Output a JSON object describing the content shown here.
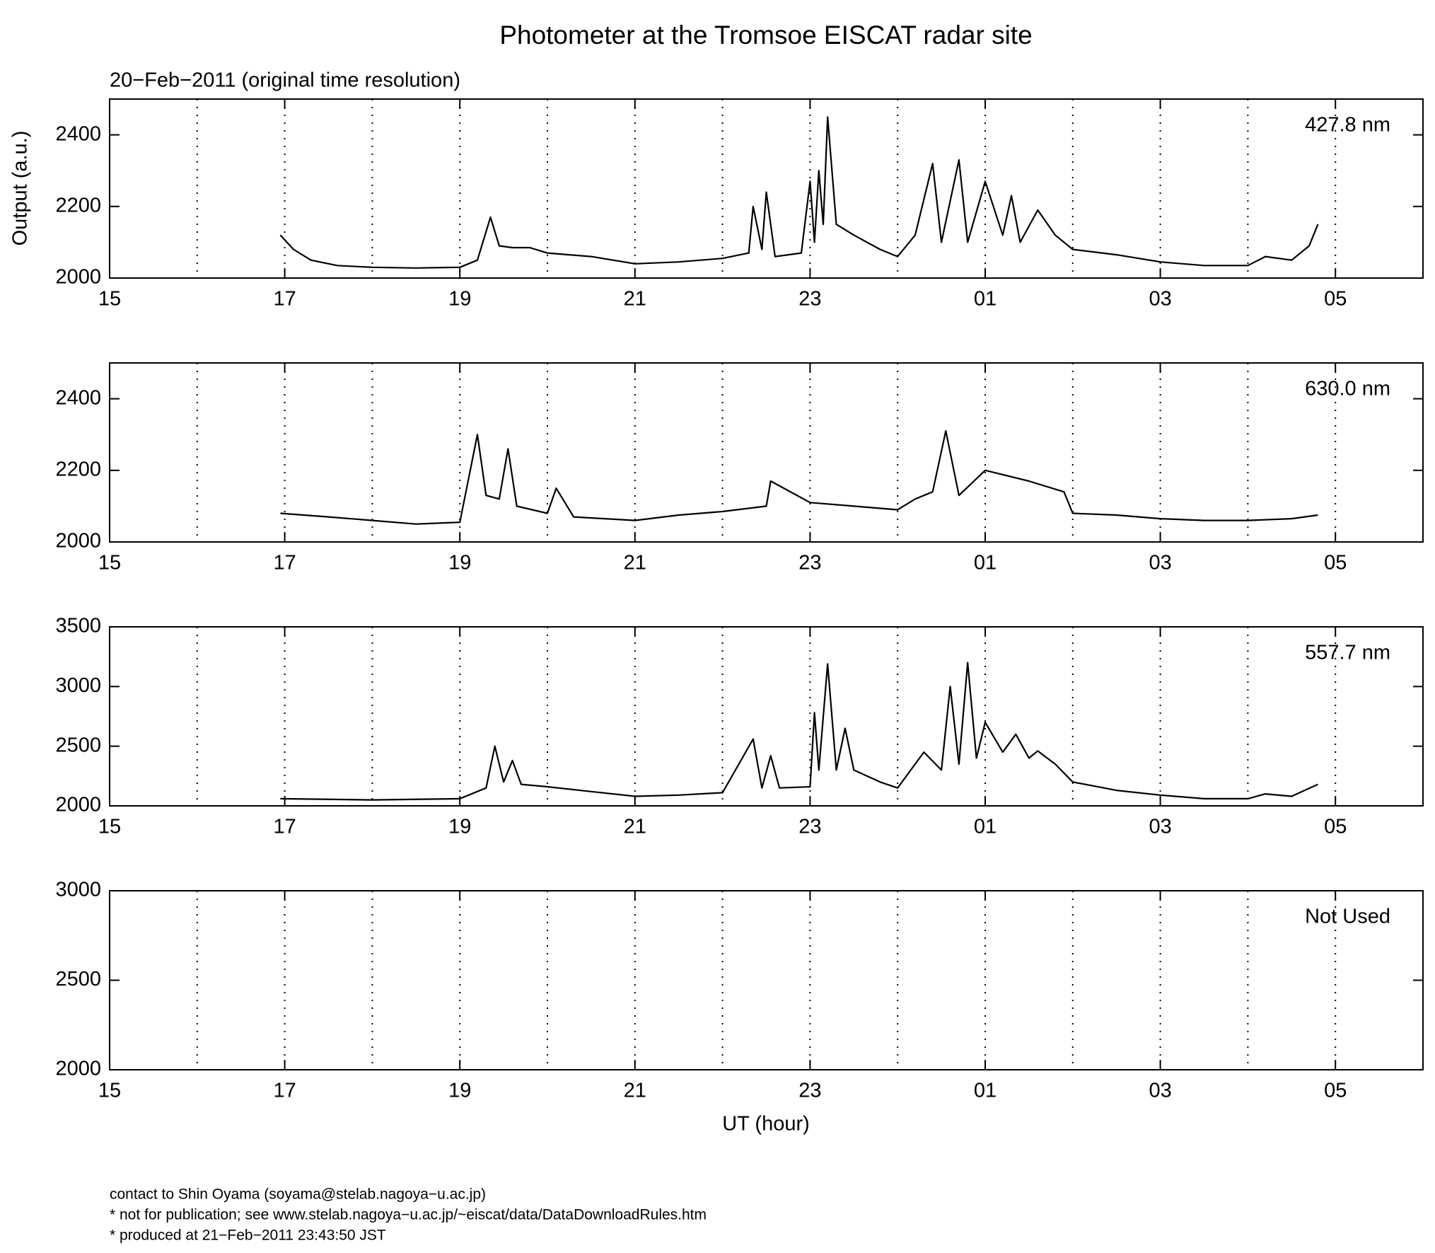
{
  "title": "Photometer at the Tromsoe EISCAT radar site",
  "subtitle": "20−Feb−2011 (original time resolution)",
  "y_label": "Output (a.u.)",
  "x_label": "UT (hour)",
  "footer": [
    "contact to Shin Oyama (soyama@stelab.nagoya−u.ac.jp)",
    "* not for publication; see www.stelab.nagoya−u.ac.jp/~eiscat/data/DataDownloadRules.htm",
    "* produced at 21−Feb−2011 23:43:50 JST"
  ],
  "chart_data": [
    {
      "type": "line",
      "label": "427.8 nm",
      "color": "#000000",
      "x": [
        16.95,
        17.1,
        17.3,
        17.6,
        18,
        18.5,
        19,
        19.2,
        19.35,
        19.45,
        19.6,
        19.8,
        20,
        20.5,
        21,
        21.5,
        22,
        22.3,
        22.35,
        22.45,
        22.5,
        22.6,
        22.9,
        23.0,
        23.05,
        23.1,
        23.15,
        23.2,
        23.3,
        23.5,
        23.8,
        24.0,
        24.2,
        24.4,
        24.5,
        24.7,
        24.8,
        25.0,
        25.2,
        25.3,
        25.4,
        25.6,
        25.8,
        26,
        26.5,
        27,
        27.5,
        28,
        28.2,
        28.5,
        28.7,
        28.8
      ],
      "values": [
        2120,
        2080,
        2050,
        2035,
        2030,
        2028,
        2030,
        2050,
        2170,
        2090,
        2085,
        2085,
        2070,
        2060,
        2040,
        2045,
        2055,
        2070,
        2200,
        2080,
        2240,
        2060,
        2070,
        2270,
        2100,
        2300,
        2150,
        2450,
        2150,
        2120,
        2080,
        2060,
        2120,
        2320,
        2100,
        2330,
        2100,
        2270,
        2120,
        2230,
        2100,
        2190,
        2120,
        2080,
        2065,
        2045,
        2035,
        2035,
        2060,
        2050,
        2090,
        2150
      ],
      "xlim": [
        15,
        30
      ],
      "ylim": [
        2000,
        2500
      ],
      "yticks": [
        2000,
        2200,
        2400
      ],
      "xticks": [
        15,
        17,
        19,
        21,
        {
          "value": 23,
          "label": "23"
        },
        {
          "value": 25,
          "label": "01"
        },
        {
          "value": 27,
          "label": "03"
        },
        {
          "value": 29,
          "label": "05"
        }
      ],
      "xgrid": [
        16,
        17,
        18,
        19,
        20,
        21,
        22,
        23,
        24,
        25,
        26,
        27,
        28,
        29
      ]
    },
    {
      "type": "line",
      "label": "630.0 nm",
      "color": "#000000",
      "x": [
        16.95,
        17.5,
        18,
        18.5,
        19,
        19.2,
        19.3,
        19.45,
        19.55,
        19.65,
        20,
        20.1,
        20.3,
        21,
        21.5,
        22,
        22.5,
        22.55,
        23,
        23.5,
        24,
        24.2,
        24.4,
        24.55,
        24.7,
        25,
        25.5,
        25.9,
        26,
        26.5,
        27,
        27.5,
        28,
        28.5,
        28.8
      ],
      "values": [
        2080,
        2070,
        2060,
        2050,
        2055,
        2300,
        2130,
        2120,
        2260,
        2100,
        2080,
        2150,
        2070,
        2060,
        2075,
        2085,
        2100,
        2170,
        2110,
        2100,
        2090,
        2120,
        2140,
        2310,
        2130,
        2200,
        2170,
        2140,
        2080,
        2075,
        2065,
        2060,
        2060,
        2065,
        2075
      ],
      "xlim": [
        15,
        30
      ],
      "ylim": [
        2000,
        2500
      ],
      "yticks": [
        2000,
        2200,
        2400
      ],
      "xticks": [
        15,
        17,
        19,
        21,
        {
          "value": 23,
          "label": "23"
        },
        {
          "value": 25,
          "label": "01"
        },
        {
          "value": 27,
          "label": "03"
        },
        {
          "value": 29,
          "label": "05"
        }
      ],
      "xgrid": [
        16,
        17,
        18,
        19,
        20,
        21,
        22,
        23,
        24,
        25,
        26,
        27,
        28,
        29
      ]
    },
    {
      "type": "line",
      "label": "557.7 nm",
      "color": "#000000",
      "x": [
        16.95,
        18,
        19,
        19.3,
        19.4,
        19.5,
        19.6,
        19.7,
        20,
        20.5,
        21,
        21.5,
        22,
        22.35,
        22.45,
        22.55,
        22.65,
        23,
        23.05,
        23.1,
        23.2,
        23.3,
        23.4,
        23.5,
        23.8,
        24,
        24.3,
        24.5,
        24.6,
        24.7,
        24.8,
        24.9,
        25,
        25.2,
        25.35,
        25.5,
        25.6,
        25.8,
        26,
        26.5,
        27,
        27.5,
        28,
        28.2,
        28.5,
        28.8
      ],
      "values": [
        2060,
        2050,
        2060,
        2150,
        2500,
        2200,
        2380,
        2180,
        2160,
        2120,
        2080,
        2090,
        2110,
        2560,
        2150,
        2420,
        2150,
        2160,
        2780,
        2300,
        3190,
        2300,
        2650,
        2300,
        2200,
        2150,
        2450,
        2300,
        3000,
        2350,
        3200,
        2400,
        2700,
        2450,
        2600,
        2400,
        2460,
        2350,
        2200,
        2130,
        2090,
        2060,
        2060,
        2100,
        2080,
        2180
      ],
      "xlim": [
        15,
        30
      ],
      "ylim": [
        2000,
        3500
      ],
      "yticks": [
        2000,
        2500,
        3000,
        3500
      ],
      "xticks": [
        15,
        17,
        19,
        21,
        {
          "value": 23,
          "label": "23"
        },
        {
          "value": 25,
          "label": "01"
        },
        {
          "value": 27,
          "label": "03"
        },
        {
          "value": 29,
          "label": "05"
        }
      ],
      "xgrid": [
        16,
        17,
        18,
        19,
        20,
        21,
        22,
        23,
        24,
        25,
        26,
        27,
        28,
        29
      ]
    },
    {
      "type": "line",
      "label": "Not Used",
      "color": "#000000",
      "x": [],
      "values": [],
      "xlim": [
        15,
        30
      ],
      "ylim": [
        2000,
        3000
      ],
      "yticks": [
        2000,
        2500,
        3000
      ],
      "xticks": [
        15,
        17,
        19,
        21,
        {
          "value": 23,
          "label": "23"
        },
        {
          "value": 25,
          "label": "01"
        },
        {
          "value": 27,
          "label": "03"
        },
        {
          "value": 29,
          "label": "05"
        }
      ],
      "xgrid": [
        16,
        17,
        18,
        19,
        20,
        21,
        22,
        23,
        24,
        25,
        26,
        27,
        28,
        29
      ]
    }
  ]
}
